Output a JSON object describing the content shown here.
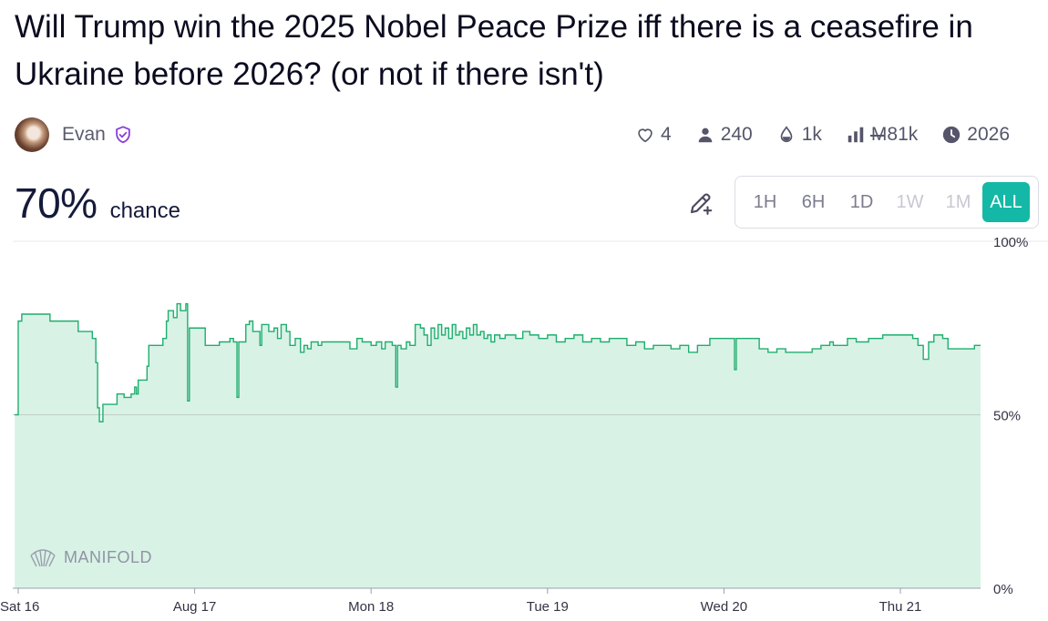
{
  "market": {
    "title": "Will Trump win the 2025 Nobel Peace Prize iff there is a ceasefire in Ukraine before 2026? (or not if there isn't)",
    "author": "Evan",
    "stats": {
      "likes": "4",
      "traders": "240",
      "liquidity": "1k",
      "currency_symbol": "M",
      "volume": "81k",
      "close_year": "2026"
    },
    "probability": "70%",
    "probability_label": "chance"
  },
  "time_ranges": [
    {
      "label": "1H",
      "state": "enabled"
    },
    {
      "label": "6H",
      "state": "enabled"
    },
    {
      "label": "1D",
      "state": "enabled"
    },
    {
      "label": "1W",
      "state": "disabled"
    },
    {
      "label": "1M",
      "state": "disabled"
    },
    {
      "label": "ALL",
      "state": "active"
    }
  ],
  "watermark": "MANIFOLD",
  "colors": {
    "accent": "#14b8a6",
    "line": "#1fae6e",
    "fill": "#d9f2e6"
  },
  "chart_data": {
    "type": "area",
    "x_ticks": [
      "Sat 16",
      "Aug 17",
      "Mon 18",
      "Tue 19",
      "Wed 20",
      "Thu 21"
    ],
    "y_ticks": [
      "100%",
      "50%",
      "0%"
    ],
    "ylim": [
      0,
      100
    ],
    "xlim": [
      0,
      5.47
    ],
    "reference_line": 50,
    "x_unit": "days since Sat 16",
    "series": [
      {
        "points": [
          [
            -0.02,
            50
          ],
          [
            0.0,
            77
          ],
          [
            0.02,
            79
          ],
          [
            0.18,
            79
          ],
          [
            0.18,
            77
          ],
          [
            0.32,
            77
          ],
          [
            0.34,
            74
          ],
          [
            0.42,
            72
          ],
          [
            0.44,
            65
          ],
          [
            0.45,
            52
          ],
          [
            0.46,
            48
          ],
          [
            0.48,
            53
          ],
          [
            0.55,
            53
          ],
          [
            0.56,
            56
          ],
          [
            0.6,
            55
          ],
          [
            0.64,
            56
          ],
          [
            0.66,
            58
          ],
          [
            0.67,
            56
          ],
          [
            0.68,
            60
          ],
          [
            0.72,
            60
          ],
          [
            0.73,
            64
          ],
          [
            0.74,
            70
          ],
          [
            0.81,
            70
          ],
          [
            0.82,
            72
          ],
          [
            0.84,
            77
          ],
          [
            0.85,
            80
          ],
          [
            0.88,
            78
          ],
          [
            0.9,
            82
          ],
          [
            0.92,
            80
          ],
          [
            0.95,
            82
          ],
          [
            0.96,
            54
          ],
          [
            0.97,
            75
          ],
          [
            1.04,
            75
          ],
          [
            1.06,
            70
          ],
          [
            1.12,
            70
          ],
          [
            1.14,
            71
          ],
          [
            1.2,
            72
          ],
          [
            1.22,
            71
          ],
          [
            1.24,
            55
          ],
          [
            1.25,
            71
          ],
          [
            1.29,
            76
          ],
          [
            1.31,
            77
          ],
          [
            1.33,
            74
          ],
          [
            1.36,
            74
          ],
          [
            1.37,
            70
          ],
          [
            1.38,
            76
          ],
          [
            1.41,
            76
          ],
          [
            1.42,
            74
          ],
          [
            1.45,
            75
          ],
          [
            1.47,
            72
          ],
          [
            1.49,
            76
          ],
          [
            1.52,
            74
          ],
          [
            1.54,
            70
          ],
          [
            1.57,
            72
          ],
          [
            1.6,
            68
          ],
          [
            1.62,
            70
          ],
          [
            1.64,
            69
          ],
          [
            1.66,
            71
          ],
          [
            1.7,
            70
          ],
          [
            1.72,
            71
          ],
          [
            1.85,
            71
          ],
          [
            1.88,
            69
          ],
          [
            1.92,
            72
          ],
          [
            1.95,
            71
          ],
          [
            2.0,
            70
          ],
          [
            2.03,
            71
          ],
          [
            2.06,
            69
          ],
          [
            2.08,
            71
          ],
          [
            2.12,
            70
          ],
          [
            2.14,
            58
          ],
          [
            2.15,
            70
          ],
          [
            2.17,
            69
          ],
          [
            2.2,
            71
          ],
          [
            2.22,
            70
          ],
          [
            2.25,
            76
          ],
          [
            2.28,
            75
          ],
          [
            2.3,
            73
          ],
          [
            2.32,
            70
          ],
          [
            2.34,
            75
          ],
          [
            2.36,
            72
          ],
          [
            2.38,
            76
          ],
          [
            2.4,
            73
          ],
          [
            2.42,
            75
          ],
          [
            2.44,
            72
          ],
          [
            2.46,
            76
          ],
          [
            2.48,
            73
          ],
          [
            2.5,
            74
          ],
          [
            2.52,
            72
          ],
          [
            2.54,
            75
          ],
          [
            2.56,
            73
          ],
          [
            2.58,
            76
          ],
          [
            2.6,
            73
          ],
          [
            2.62,
            74
          ],
          [
            2.64,
            72
          ],
          [
            2.66,
            73
          ],
          [
            2.68,
            71
          ],
          [
            2.7,
            73
          ],
          [
            2.73,
            72
          ],
          [
            2.76,
            73
          ],
          [
            2.82,
            72
          ],
          [
            2.86,
            74
          ],
          [
            2.9,
            73
          ],
          [
            2.95,
            72
          ],
          [
            3.0,
            73
          ],
          [
            3.05,
            71
          ],
          [
            3.1,
            72
          ],
          [
            3.15,
            73
          ],
          [
            3.2,
            71
          ],
          [
            3.25,
            72
          ],
          [
            3.3,
            71
          ],
          [
            3.35,
            72
          ],
          [
            3.4,
            72
          ],
          [
            3.45,
            70
          ],
          [
            3.5,
            71
          ],
          [
            3.55,
            69
          ],
          [
            3.6,
            70
          ],
          [
            3.65,
            70
          ],
          [
            3.7,
            69
          ],
          [
            3.75,
            70
          ],
          [
            3.8,
            68
          ],
          [
            3.85,
            70
          ],
          [
            3.9,
            70
          ],
          [
            3.92,
            72
          ],
          [
            4.05,
            72
          ],
          [
            4.06,
            63
          ],
          [
            4.07,
            72
          ],
          [
            4.18,
            72
          ],
          [
            4.2,
            69
          ],
          [
            4.25,
            68
          ],
          [
            4.3,
            69
          ],
          [
            4.35,
            68
          ],
          [
            4.4,
            68
          ],
          [
            4.5,
            69
          ],
          [
            4.55,
            70
          ],
          [
            4.6,
            71
          ],
          [
            4.62,
            70
          ],
          [
            4.7,
            72
          ],
          [
            4.75,
            71
          ],
          [
            4.82,
            72
          ],
          [
            4.9,
            73
          ],
          [
            5.0,
            73
          ],
          [
            5.07,
            72
          ],
          [
            5.1,
            70
          ],
          [
            5.13,
            66
          ],
          [
            5.16,
            71
          ],
          [
            5.19,
            73
          ],
          [
            5.24,
            72
          ],
          [
            5.27,
            69
          ],
          [
            5.35,
            69
          ],
          [
            5.42,
            70
          ],
          [
            5.47,
            70
          ]
        ]
      }
    ]
  }
}
